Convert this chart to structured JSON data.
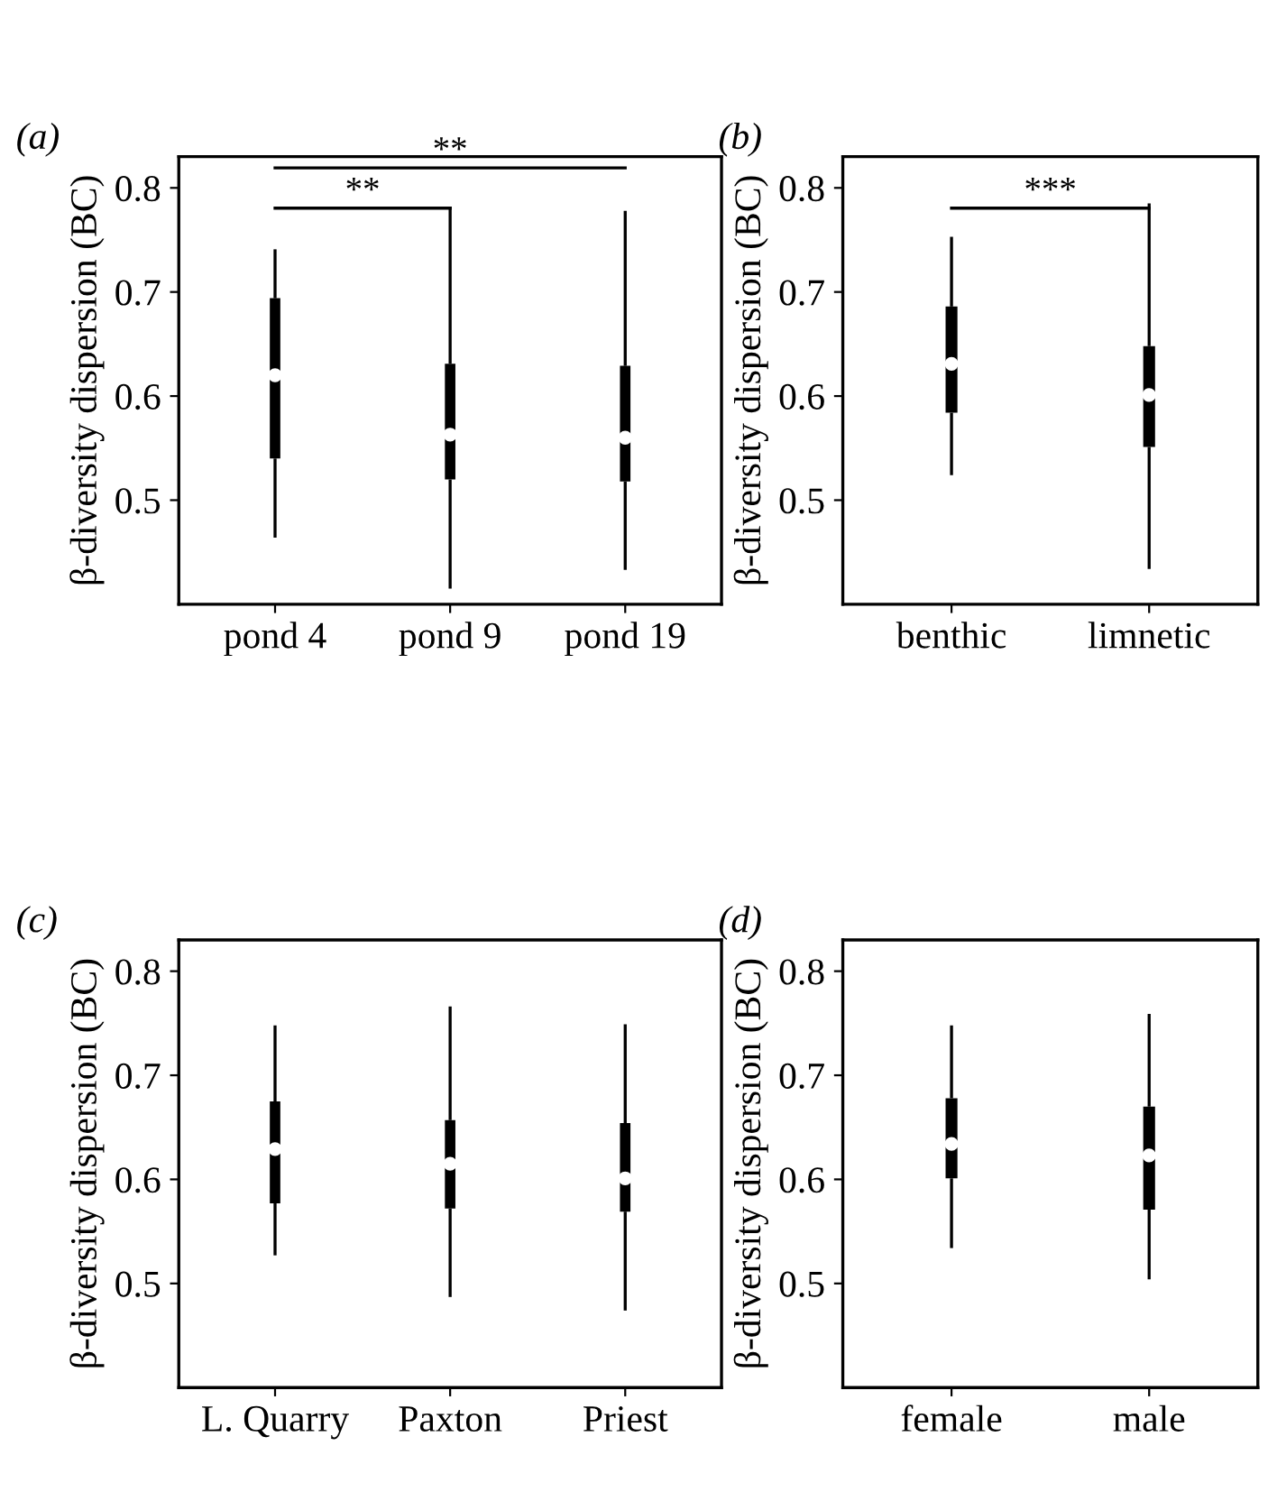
{
  "chart_data": [
    {
      "type": "box",
      "title": "(a)",
      "ylabel": "β-diversity dispersion (BC)",
      "categories": [
        "pond 4",
        "pond 9",
        "pond 19"
      ],
      "ylim": [
        0.4,
        0.83
      ],
      "yticks": [
        0.5,
        0.6,
        0.7,
        0.8
      ],
      "grid": false,
      "annotations": [
        "**",
        "**"
      ],
      "boxes": [
        {
          "low": 0.464,
          "q1": 0.54,
          "median": 0.62,
          "q3": 0.694,
          "high": 0.741
        },
        {
          "low": 0.415,
          "q1": 0.52,
          "median": 0.563,
          "q3": 0.631,
          "high": 0.782
        },
        {
          "low": 0.433,
          "q1": 0.518,
          "median": 0.56,
          "q3": 0.629,
          "high": 0.778
        }
      ]
    },
    {
      "type": "box",
      "title": "(b)",
      "ylabel": "β-diversity dispersion (BC)",
      "categories": [
        "benthic",
        "limnetic"
      ],
      "ylim": [
        0.4,
        0.83
      ],
      "yticks": [
        0.5,
        0.6,
        0.7,
        0.8
      ],
      "grid": false,
      "annotations": [
        "***"
      ],
      "boxes": [
        {
          "low": 0.524,
          "q1": 0.584,
          "median": 0.631,
          "q3": 0.686,
          "high": 0.753
        },
        {
          "low": 0.434,
          "q1": 0.551,
          "median": 0.601,
          "q3": 0.648,
          "high": 0.785
        }
      ]
    },
    {
      "type": "box",
      "title": "(c)",
      "ylabel": "β-diversity dispersion (BC)",
      "categories": [
        "L. Quarry",
        "Paxton",
        "Priest"
      ],
      "ylim": [
        0.4,
        0.83
      ],
      "yticks": [
        0.5,
        0.6,
        0.7,
        0.8
      ],
      "grid": false,
      "boxes": [
        {
          "low": 0.527,
          "q1": 0.577,
          "median": 0.629,
          "q3": 0.675,
          "high": 0.748
        },
        {
          "low": 0.487,
          "q1": 0.572,
          "median": 0.615,
          "q3": 0.657,
          "high": 0.766
        },
        {
          "low": 0.474,
          "q1": 0.569,
          "median": 0.601,
          "q3": 0.654,
          "high": 0.749
        }
      ]
    },
    {
      "type": "box",
      "title": "(d)",
      "ylabel": "β-diversity dispersion (BC)",
      "categories": [
        "female",
        "male"
      ],
      "ylim": [
        0.4,
        0.83
      ],
      "yticks": [
        0.5,
        0.6,
        0.7,
        0.8
      ],
      "grid": false,
      "boxes": [
        {
          "low": 0.534,
          "q1": 0.601,
          "median": 0.634,
          "q3": 0.678,
          "high": 0.748
        },
        {
          "low": 0.504,
          "q1": 0.571,
          "median": 0.623,
          "q3": 0.67,
          "high": 0.759
        }
      ]
    }
  ]
}
